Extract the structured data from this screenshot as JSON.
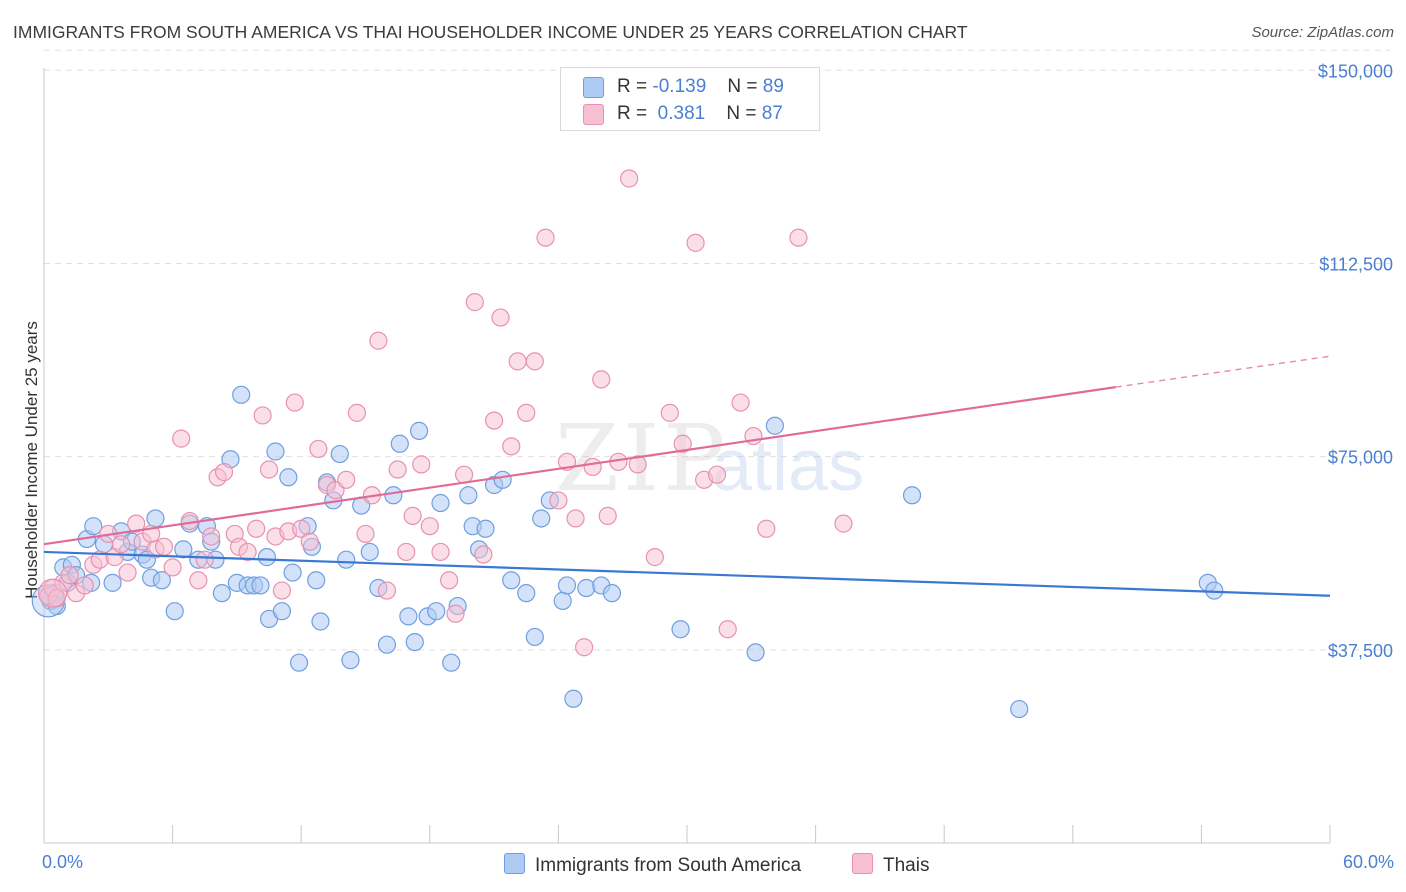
{
  "title": "IMMIGRANTS FROM SOUTH AMERICA VS THAI HOUSEHOLDER INCOME UNDER 25 YEARS CORRELATION CHART",
  "source": "Source: ZipAtlas.com",
  "watermark": {
    "zip": "ZIP",
    "atlas": "atlas"
  },
  "legend": {
    "rows": [
      {
        "r_label": "R =",
        "r_value": "-0.139",
        "n_label": "N =",
        "n_value": "89"
      },
      {
        "r_label": "R =",
        "r_value": " 0.381",
        "n_label": "N =",
        "n_value": "87"
      }
    ]
  },
  "bottom_legend": {
    "blue": "Immigrants from South America",
    "pink": "Thais"
  },
  "colors": {
    "blue_fill": "#aecbf3",
    "blue_stroke": "#6f9fe0",
    "blue_line": "#3a78d4",
    "pink_fill": "#f7c0d2",
    "pink_stroke": "#e891b0",
    "pink_line": "#e06b97",
    "axis_text": "#4a7fd1",
    "grid": "#e0e0e0"
  },
  "chart_data": {
    "type": "scatter",
    "title": "IMMIGRANTS FROM SOUTH AMERICA VS THAI HOUSEHOLDER INCOME UNDER 25 YEARS CORRELATION CHART",
    "xlabel": "",
    "ylabel": "Householder Income Under 25 years",
    "xlim": [
      0,
      60
    ],
    "ylim": [
      0,
      152000
    ],
    "x_tick_labels": [
      "0.0%",
      "60.0%"
    ],
    "y_ticks": [
      37500,
      75000,
      112500,
      150000
    ],
    "y_tick_labels": [
      "$37,500",
      "$75,000",
      "$112,500",
      "$150,000"
    ],
    "grid": true,
    "legend_placement": "top-center",
    "series": [
      {
        "name": "Immigrants from South America",
        "trend": {
          "x": [
            0,
            60
          ],
          "y": [
            56500,
            48000
          ]
        },
        "points": [
          [
            0.3,
            47000
          ],
          [
            0.5,
            48500
          ],
          [
            0.6,
            46000
          ],
          [
            0.9,
            53500
          ],
          [
            1.1,
            50500
          ],
          [
            1.3,
            54000
          ],
          [
            1.5,
            52000
          ],
          [
            2.0,
            59000
          ],
          [
            2.2,
            50500
          ],
          [
            2.3,
            61500
          ],
          [
            2.8,
            58000
          ],
          [
            3.2,
            50500
          ],
          [
            3.6,
            60500
          ],
          [
            3.9,
            56500
          ],
          [
            4.1,
            58500
          ],
          [
            4.6,
            56000
          ],
          [
            4.8,
            55000
          ],
          [
            5.0,
            51500
          ],
          [
            5.2,
            63000
          ],
          [
            5.5,
            51000
          ],
          [
            6.1,
            45000
          ],
          [
            6.5,
            57000
          ],
          [
            6.8,
            62000
          ],
          [
            7.2,
            55000
          ],
          [
            7.6,
            61500
          ],
          [
            7.8,
            58500
          ],
          [
            8.0,
            55000
          ],
          [
            8.3,
            48500
          ],
          [
            8.7,
            74500
          ],
          [
            9.0,
            50500
          ],
          [
            9.2,
            87000
          ],
          [
            9.5,
            50000
          ],
          [
            9.8,
            50000
          ],
          [
            10.1,
            50000
          ],
          [
            10.4,
            55500
          ],
          [
            10.5,
            43500
          ],
          [
            10.8,
            76000
          ],
          [
            11.1,
            45000
          ],
          [
            11.4,
            71000
          ],
          [
            11.6,
            52500
          ],
          [
            11.9,
            35000
          ],
          [
            12.3,
            61500
          ],
          [
            12.5,
            57500
          ],
          [
            12.7,
            51000
          ],
          [
            12.9,
            43000
          ],
          [
            13.2,
            70000
          ],
          [
            13.5,
            66500
          ],
          [
            13.8,
            75500
          ],
          [
            14.1,
            55000
          ],
          [
            14.3,
            35500
          ],
          [
            14.8,
            65500
          ],
          [
            15.2,
            56500
          ],
          [
            15.6,
            49500
          ],
          [
            16.0,
            38500
          ],
          [
            16.3,
            67500
          ],
          [
            16.6,
            77500
          ],
          [
            17.0,
            44000
          ],
          [
            17.3,
            39000
          ],
          [
            17.5,
            80000
          ],
          [
            17.9,
            44000
          ],
          [
            18.3,
            45000
          ],
          [
            18.5,
            66000
          ],
          [
            19.0,
            35000
          ],
          [
            19.3,
            46000
          ],
          [
            19.8,
            67500
          ],
          [
            20.0,
            61500
          ],
          [
            20.3,
            57000
          ],
          [
            20.6,
            61000
          ],
          [
            21.0,
            69500
          ],
          [
            21.4,
            70500
          ],
          [
            21.8,
            51000
          ],
          [
            22.5,
            48500
          ],
          [
            22.9,
            40000
          ],
          [
            23.2,
            63000
          ],
          [
            23.6,
            66500
          ],
          [
            24.2,
            47000
          ],
          [
            24.4,
            50000
          ],
          [
            24.7,
            28000
          ],
          [
            25.3,
            49500
          ],
          [
            26.0,
            50000
          ],
          [
            26.5,
            48500
          ],
          [
            29.7,
            41500
          ],
          [
            33.2,
            37000
          ],
          [
            34.1,
            81000
          ],
          [
            40.5,
            67500
          ],
          [
            45.5,
            26000
          ],
          [
            54.3,
            50500
          ],
          [
            54.6,
            49000
          ],
          [
            0.2,
            48000
          ]
        ]
      },
      {
        "name": "Thais",
        "trend": {
          "x": [
            0,
            50
          ],
          "y": [
            58000,
            88500
          ]
        },
        "trend_dashed": {
          "x": [
            50,
            60
          ],
          "y": [
            88500,
            94500
          ]
        },
        "points": [
          [
            0.2,
            48000
          ],
          [
            0.4,
            49500
          ],
          [
            0.6,
            47500
          ],
          [
            0.9,
            50500
          ],
          [
            1.2,
            52000
          ],
          [
            1.5,
            48500
          ],
          [
            1.9,
            50000
          ],
          [
            2.3,
            54000
          ],
          [
            2.6,
            55000
          ],
          [
            3.0,
            60000
          ],
          [
            3.3,
            55500
          ],
          [
            3.6,
            58000
          ],
          [
            3.9,
            52500
          ],
          [
            4.3,
            62000
          ],
          [
            4.6,
            58500
          ],
          [
            5.0,
            60000
          ],
          [
            5.2,
            57000
          ],
          [
            5.6,
            57500
          ],
          [
            6.0,
            53500
          ],
          [
            6.4,
            78500
          ],
          [
            6.8,
            62500
          ],
          [
            7.2,
            51000
          ],
          [
            7.5,
            55000
          ],
          [
            7.8,
            59500
          ],
          [
            8.1,
            71000
          ],
          [
            8.4,
            72000
          ],
          [
            8.9,
            60000
          ],
          [
            9.1,
            57500
          ],
          [
            9.5,
            56500
          ],
          [
            9.9,
            61000
          ],
          [
            10.2,
            83000
          ],
          [
            10.5,
            72500
          ],
          [
            10.8,
            59500
          ],
          [
            11.1,
            49000
          ],
          [
            11.4,
            60500
          ],
          [
            11.7,
            85500
          ],
          [
            12.0,
            61000
          ],
          [
            12.4,
            58500
          ],
          [
            12.8,
            76500
          ],
          [
            13.2,
            69500
          ],
          [
            13.6,
            68500
          ],
          [
            14.1,
            70500
          ],
          [
            14.6,
            83500
          ],
          [
            15.0,
            60000
          ],
          [
            15.3,
            67500
          ],
          [
            15.6,
            97500
          ],
          [
            16.0,
            49000
          ],
          [
            16.5,
            72500
          ],
          [
            16.9,
            56500
          ],
          [
            17.2,
            63500
          ],
          [
            17.6,
            73500
          ],
          [
            18.0,
            61500
          ],
          [
            18.5,
            56500
          ],
          [
            18.9,
            51000
          ],
          [
            19.2,
            44500
          ],
          [
            19.6,
            71500
          ],
          [
            20.1,
            105000
          ],
          [
            20.5,
            56000
          ],
          [
            21.0,
            82000
          ],
          [
            21.3,
            102000
          ],
          [
            21.8,
            77000
          ],
          [
            22.1,
            93500
          ],
          [
            22.5,
            83500
          ],
          [
            22.9,
            93500
          ],
          [
            23.4,
            117500
          ],
          [
            24.0,
            66500
          ],
          [
            24.4,
            74000
          ],
          [
            24.8,
            63000
          ],
          [
            25.2,
            38000
          ],
          [
            25.6,
            73000
          ],
          [
            26.0,
            90000
          ],
          [
            26.3,
            63500
          ],
          [
            26.8,
            74000
          ],
          [
            27.3,
            129000
          ],
          [
            27.7,
            73500
          ],
          [
            28.5,
            55500
          ],
          [
            29.2,
            83500
          ],
          [
            29.8,
            77500
          ],
          [
            30.4,
            116500
          ],
          [
            30.8,
            70500
          ],
          [
            31.4,
            71500
          ],
          [
            31.9,
            41500
          ],
          [
            32.5,
            85500
          ],
          [
            33.1,
            79000
          ],
          [
            33.7,
            61000
          ],
          [
            35.2,
            117500
          ],
          [
            37.3,
            62000
          ]
        ]
      }
    ]
  }
}
